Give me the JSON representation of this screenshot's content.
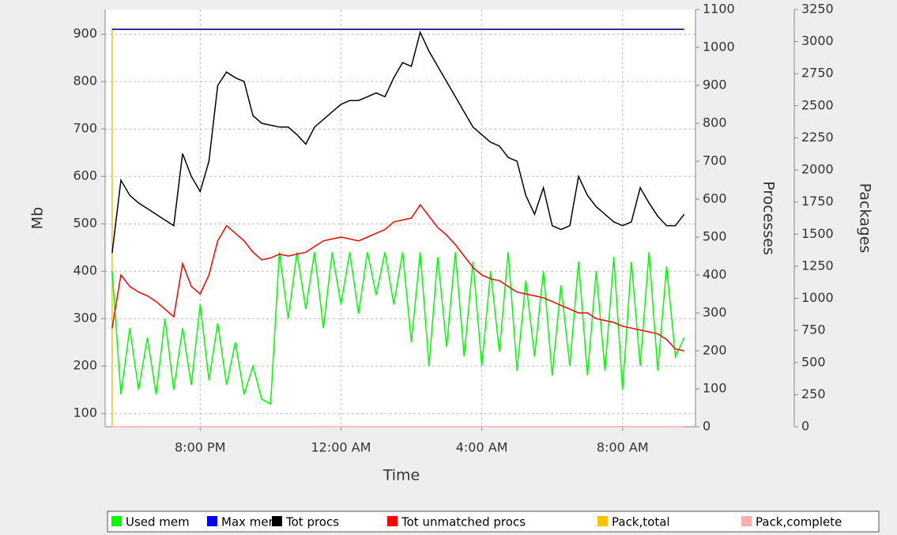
{
  "chart_data": {
    "type": "line",
    "x_label": "Time",
    "y_label": "Mb",
    "y2_label": "Processes",
    "y3_label": "Packages",
    "x": [
      17.5,
      17.75,
      18,
      18.25,
      18.5,
      18.75,
      19,
      19.25,
      19.5,
      19.75,
      20,
      20.25,
      20.5,
      20.75,
      21,
      21.25,
      21.5,
      21.75,
      22,
      22.25,
      22.5,
      22.75,
      23,
      23.25,
      23.5,
      23.75,
      24,
      24.25,
      24.5,
      24.75,
      25,
      25.25,
      25.5,
      25.75,
      26,
      26.25,
      26.5,
      26.75,
      27,
      27.25,
      27.5,
      27.75,
      28,
      28.25,
      28.5,
      28.75,
      29,
      29.25,
      29.5,
      29.75,
      30,
      30.25,
      30.5,
      30.75,
      31,
      31.25,
      31.5,
      31.75,
      32,
      32.25,
      32.5,
      32.75,
      33,
      33.25,
      33.5,
      33.75
    ],
    "xlim": [
      17.3,
      34.07
    ],
    "xticks": [
      {
        "value": 20,
        "label": "8:00 PM"
      },
      {
        "value": 24,
        "label": "12:00 AM"
      },
      {
        "value": 28,
        "label": "4:00 AM"
      },
      {
        "value": 32,
        "label": "8:00 AM"
      }
    ],
    "ylim": [
      72,
      952
    ],
    "yticks": [
      100,
      200,
      300,
      400,
      500,
      600,
      700,
      800,
      900
    ],
    "y2lim": [
      0,
      1100
    ],
    "y2ticks": [
      0,
      100,
      200,
      300,
      400,
      500,
      600,
      700,
      800,
      900,
      1000,
      1100
    ],
    "y3lim": [
      0,
      3250
    ],
    "y3ticks": [
      0,
      250,
      500,
      750,
      1000,
      1250,
      1500,
      1750,
      2000,
      2250,
      2500,
      2750,
      3000,
      3250
    ],
    "grid": true,
    "legend": "bottom",
    "series": [
      {
        "name": "Used mem",
        "color": "#00ff00",
        "axis": "y",
        "values": [
          400,
          140,
          280,
          150,
          260,
          140,
          300,
          150,
          280,
          160,
          330,
          170,
          290,
          160,
          250,
          140,
          200,
          130,
          120,
          440,
          300,
          440,
          320,
          440,
          280,
          440,
          330,
          440,
          310,
          440,
          350,
          440,
          330,
          440,
          250,
          440,
          200,
          430,
          240,
          440,
          220,
          420,
          200,
          400,
          230,
          440,
          190,
          380,
          220,
          400,
          180,
          370,
          200,
          420,
          180,
          400,
          190,
          430,
          150,
          420,
          200,
          440,
          190,
          410,
          220,
          260
        ]
      },
      {
        "name": "Max mem",
        "color": "#0000ff",
        "axis": "y",
        "x": [
          17.5,
          33.75
        ],
        "values": [
          910,
          910
        ]
      },
      {
        "name": "Tot procs",
        "color": "#000000",
        "axis": "y2",
        "values": [
          458,
          650,
          610,
          590,
          575,
          560,
          545,
          530,
          720,
          660,
          620,
          700,
          900,
          935,
          920,
          910,
          820,
          800,
          795,
          790,
          790,
          770,
          745,
          790,
          810,
          830,
          850,
          860,
          860,
          870,
          880,
          870,
          920,
          960,
          950,
          1040,
          990,
          950,
          910,
          870,
          830,
          790,
          770,
          750,
          740,
          710,
          700,
          610,
          560,
          630,
          530,
          520,
          530,
          660,
          610,
          580,
          560,
          540,
          530,
          540,
          630,
          590,
          555,
          530,
          530,
          560
        ]
      },
      {
        "name": "Tot unmatched procs",
        "color": "#ff0000",
        "axis": "y2",
        "values": [
          260,
          400,
          370,
          355,
          345,
          330,
          310,
          290,
          430,
          370,
          350,
          400,
          490,
          530,
          510,
          490,
          460,
          440,
          445,
          455,
          450,
          455,
          460,
          475,
          490,
          495,
          500,
          495,
          490,
          500,
          510,
          520,
          540,
          545,
          550,
          585,
          555,
          525,
          505,
          480,
          450,
          420,
          400,
          390,
          385,
          370,
          355,
          350,
          345,
          340,
          330,
          320,
          310,
          300,
          300,
          285,
          280,
          275,
          265,
          260,
          255,
          250,
          245,
          230,
          205,
          200
        ]
      },
      {
        "name": "Pack,total",
        "color": "#ffc000",
        "axis": "y3",
        "x": [
          17.5,
          17.5,
          33.75
        ],
        "values": [
          0,
          3100,
          3100
        ]
      },
      {
        "name": "Pack,complete",
        "color": "#ffafaf",
        "axis": "y3",
        "x": [
          17.5,
          33.75
        ],
        "values": [
          0,
          0
        ]
      }
    ]
  }
}
